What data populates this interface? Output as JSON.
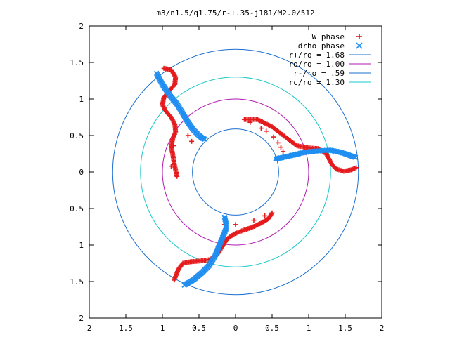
{
  "chart_data": {
    "type": "scatter",
    "title": "m3/n1.5/q1.75/r-+.35-j181/M2.0/512",
    "xlabel": "",
    "ylabel": "",
    "xlim": [
      -2,
      2
    ],
    "ylim": [
      -2,
      2
    ],
    "x_ticks": [
      {
        "value": -2,
        "label": "2"
      },
      {
        "value": -1.5,
        "label": "1.5"
      },
      {
        "value": -1,
        "label": "1"
      },
      {
        "value": -0.5,
        "label": "0.5"
      },
      {
        "value": 0,
        "label": "0"
      },
      {
        "value": 0.5,
        "label": "0.5"
      },
      {
        "value": 1,
        "label": "1"
      },
      {
        "value": 1.5,
        "label": "1.5"
      },
      {
        "value": 2,
        "label": "2"
      }
    ],
    "y_ticks": [
      {
        "value": 2,
        "label": "2"
      },
      {
        "value": 1.5,
        "label": "1.5"
      },
      {
        "value": 1,
        "label": "1"
      },
      {
        "value": 0.5,
        "label": "0.5"
      },
      {
        "value": 0,
        "label": "0"
      },
      {
        "value": -0.5,
        "label": "0.5"
      },
      {
        "value": -1,
        "label": "1"
      },
      {
        "value": -1.5,
        "label": "1.5"
      },
      {
        "value": -2,
        "label": "2"
      }
    ],
    "grid": false,
    "legend_position": "top-right",
    "circles": [
      {
        "name": "r+/ro = 1.68",
        "radius": 1.68,
        "color": "#1a6fcf"
      },
      {
        "name": "ro/ro = 1.00",
        "radius": 1.0,
        "color": "#b01ab0"
      },
      {
        "name": "r-/ro = .59",
        "radius": 0.59,
        "color": "#1a6fcf"
      },
      {
        "name": "rc/ro = 1.30",
        "radius": 1.3,
        "color": "#19c8c8"
      }
    ],
    "series": [
      {
        "name": "W phase",
        "marker": "plus",
        "color": "#e41a1c",
        "arms": [
          [
            [
              0.12,
              0.72
            ],
            [
              0.3,
              0.72
            ],
            [
              0.5,
              0.62
            ],
            [
              0.68,
              0.48
            ],
            [
              0.84,
              0.36
            ],
            [
              1.0,
              0.33
            ],
            [
              1.13,
              0.32
            ],
            [
              1.24,
              0.25
            ],
            [
              1.32,
              0.1
            ],
            [
              1.38,
              0.04
            ],
            [
              1.48,
              0.01
            ],
            [
              1.58,
              0.03
            ],
            [
              1.65,
              0.06
            ]
          ],
          [
            [
              -0.98,
              1.42
            ],
            [
              -0.88,
              1.4
            ],
            [
              -0.82,
              1.3
            ],
            [
              -0.83,
              1.2
            ],
            [
              -0.9,
              1.12
            ],
            [
              -0.98,
              1.02
            ],
            [
              -1.0,
              0.92
            ],
            [
              -0.95,
              0.83
            ],
            [
              -0.88,
              0.75
            ],
            [
              -0.83,
              0.65
            ],
            [
              -0.82,
              0.55
            ],
            [
              -0.86,
              0.45
            ],
            [
              -0.88,
              0.35
            ],
            [
              -0.86,
              0.25
            ],
            [
              -0.84,
              0.12
            ],
            [
              -0.8,
              -0.06
            ]
          ],
          [
            [
              0.5,
              -0.56
            ],
            [
              0.45,
              -0.64
            ],
            [
              0.35,
              -0.7
            ],
            [
              0.22,
              -0.76
            ],
            [
              0.1,
              -0.8
            ],
            [
              -0.02,
              -0.85
            ],
            [
              -0.12,
              -0.92
            ],
            [
              -0.18,
              -1.02
            ],
            [
              -0.25,
              -1.13
            ],
            [
              -0.35,
              -1.2
            ],
            [
              -0.5,
              -1.22
            ],
            [
              -0.62,
              -1.23
            ],
            [
              -0.72,
              -1.25
            ],
            [
              -0.78,
              -1.33
            ],
            [
              -0.82,
              -1.43
            ],
            [
              -0.84,
              -1.48
            ]
          ]
        ],
        "scatter": [
          [
            0.2,
            0.68
          ],
          [
            0.35,
            0.6
          ],
          [
            0.42,
            0.56
          ],
          [
            0.52,
            0.48
          ],
          [
            0.58,
            0.4
          ],
          [
            0.62,
            0.34
          ],
          [
            0.65,
            0.28
          ],
          [
            -0.85,
            0.36
          ],
          [
            -0.88,
            0.08
          ],
          [
            -0.6,
            0.42
          ],
          [
            -0.65,
            0.5
          ],
          [
            -0.15,
            -0.72
          ],
          [
            0.0,
            -0.72
          ],
          [
            0.25,
            -0.66
          ],
          [
            0.4,
            -0.6
          ]
        ]
      },
      {
        "name": "drho phase",
        "marker": "x",
        "color": "#1f8ef1",
        "arms": [
          [
            [
              -1.08,
              1.35
            ],
            [
              -1.0,
              1.2
            ],
            [
              -0.9,
              1.05
            ],
            [
              -0.8,
              0.93
            ],
            [
              -0.72,
              0.8
            ],
            [
              -0.65,
              0.68
            ],
            [
              -0.58,
              0.58
            ],
            [
              -0.5,
              0.5
            ],
            [
              -0.45,
              0.46
            ],
            [
              -0.42,
              0.45
            ]
          ],
          [
            [
              0.55,
              0.18
            ],
            [
              0.65,
              0.2
            ],
            [
              0.78,
              0.23
            ],
            [
              0.9,
              0.26
            ],
            [
              1.02,
              0.28
            ],
            [
              1.15,
              0.29
            ],
            [
              1.28,
              0.3
            ],
            [
              1.4,
              0.28
            ],
            [
              1.5,
              0.25
            ],
            [
              1.58,
              0.22
            ],
            [
              1.64,
              0.2
            ]
          ],
          [
            [
              -0.7,
              -1.55
            ],
            [
              -0.58,
              -1.48
            ],
            [
              -0.46,
              -1.38
            ],
            [
              -0.36,
              -1.28
            ],
            [
              -0.28,
              -1.15
            ],
            [
              -0.22,
              -1.0
            ],
            [
              -0.17,
              -0.88
            ],
            [
              -0.13,
              -0.78
            ],
            [
              -0.13,
              -0.7
            ],
            [
              -0.15,
              -0.62
            ]
          ]
        ],
        "scatter": []
      }
    ]
  }
}
